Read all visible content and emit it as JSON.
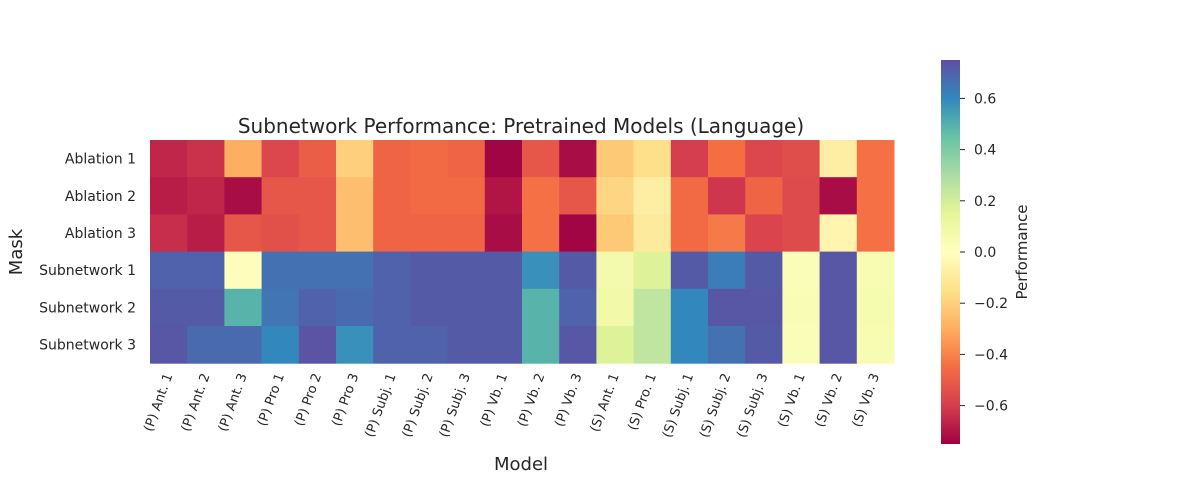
{
  "chart_data": {
    "type": "heatmap",
    "title": "Subnetwork Performance: Pretrained Models (Language)",
    "xlabel": "Model",
    "ylabel": "Mask",
    "colorbar_label": "Performance",
    "colormap": "Spectral",
    "vmin": -0.75,
    "vmax": 0.75,
    "colorbar_ticks": [
      0.6,
      0.4,
      0.2,
      0.0,
      -0.2,
      -0.4,
      -0.6
    ],
    "colorbar_tick_labels": [
      "0.6",
      "0.4",
      "0.2",
      "0.0",
      "−0.2",
      "−0.4",
      "−0.6"
    ],
    "columns": [
      "(P) Ant. 1",
      "(P) Ant. 2",
      "(P) Ant. 3",
      "(P) Pro 1",
      "(P) Pro 2",
      "(P) Pro 3",
      "(P) Subj. 1",
      "(P) Subj. 2",
      "(P) Subj. 3",
      "(P) Vb. 1",
      "(P) Vb. 2",
      "(P) Vb. 3",
      "(S) Ant. 1",
      "(S) Pro. 1",
      "(S) Subj. 1",
      "(S) Subj. 2",
      "(S) Subj. 3",
      "(S) Vb. 1",
      "(S) Vb. 2",
      "(S) Vb. 3"
    ],
    "rows": [
      "Ablation 1",
      "Ablation 2",
      "Ablation 3",
      "Subnetwork 1",
      "Subnetwork 2",
      "Subnetwork 3"
    ],
    "values": [
      [
        -0.66,
        -0.63,
        -0.3,
        -0.57,
        -0.5,
        -0.2,
        -0.48,
        -0.46,
        -0.48,
        -0.74,
        -0.52,
        -0.72,
        -0.22,
        -0.15,
        -0.6,
        -0.45,
        -0.57,
        -0.55,
        -0.08,
        -0.44
      ],
      [
        -0.68,
        -0.66,
        -0.72,
        -0.52,
        -0.52,
        -0.25,
        -0.48,
        -0.46,
        -0.46,
        -0.7,
        -0.44,
        -0.52,
        -0.18,
        -0.08,
        -0.46,
        -0.62,
        -0.48,
        -0.56,
        -0.72,
        -0.44
      ],
      [
        -0.64,
        -0.68,
        -0.52,
        -0.54,
        -0.52,
        -0.25,
        -0.48,
        -0.48,
        -0.48,
        -0.72,
        -0.44,
        -0.74,
        -0.22,
        -0.1,
        -0.46,
        -0.42,
        -0.58,
        -0.56,
        -0.05,
        -0.44
      ],
      [
        0.7,
        0.7,
        -0.01,
        0.66,
        0.66,
        0.66,
        0.7,
        0.72,
        0.72,
        0.72,
        0.58,
        0.72,
        0.07,
        0.17,
        0.72,
        0.63,
        0.72,
        0.03,
        0.73,
        0.05
      ],
      [
        0.72,
        0.72,
        0.49,
        0.65,
        0.7,
        0.68,
        0.7,
        0.72,
        0.72,
        0.72,
        0.49,
        0.7,
        0.08,
        0.25,
        0.6,
        0.73,
        0.73,
        0.04,
        0.73,
        0.06
      ],
      [
        0.73,
        0.68,
        0.68,
        0.6,
        0.74,
        0.58,
        0.7,
        0.7,
        0.72,
        0.72,
        0.49,
        0.73,
        0.17,
        0.25,
        0.6,
        0.66,
        0.72,
        0.03,
        0.73,
        0.05
      ]
    ]
  }
}
